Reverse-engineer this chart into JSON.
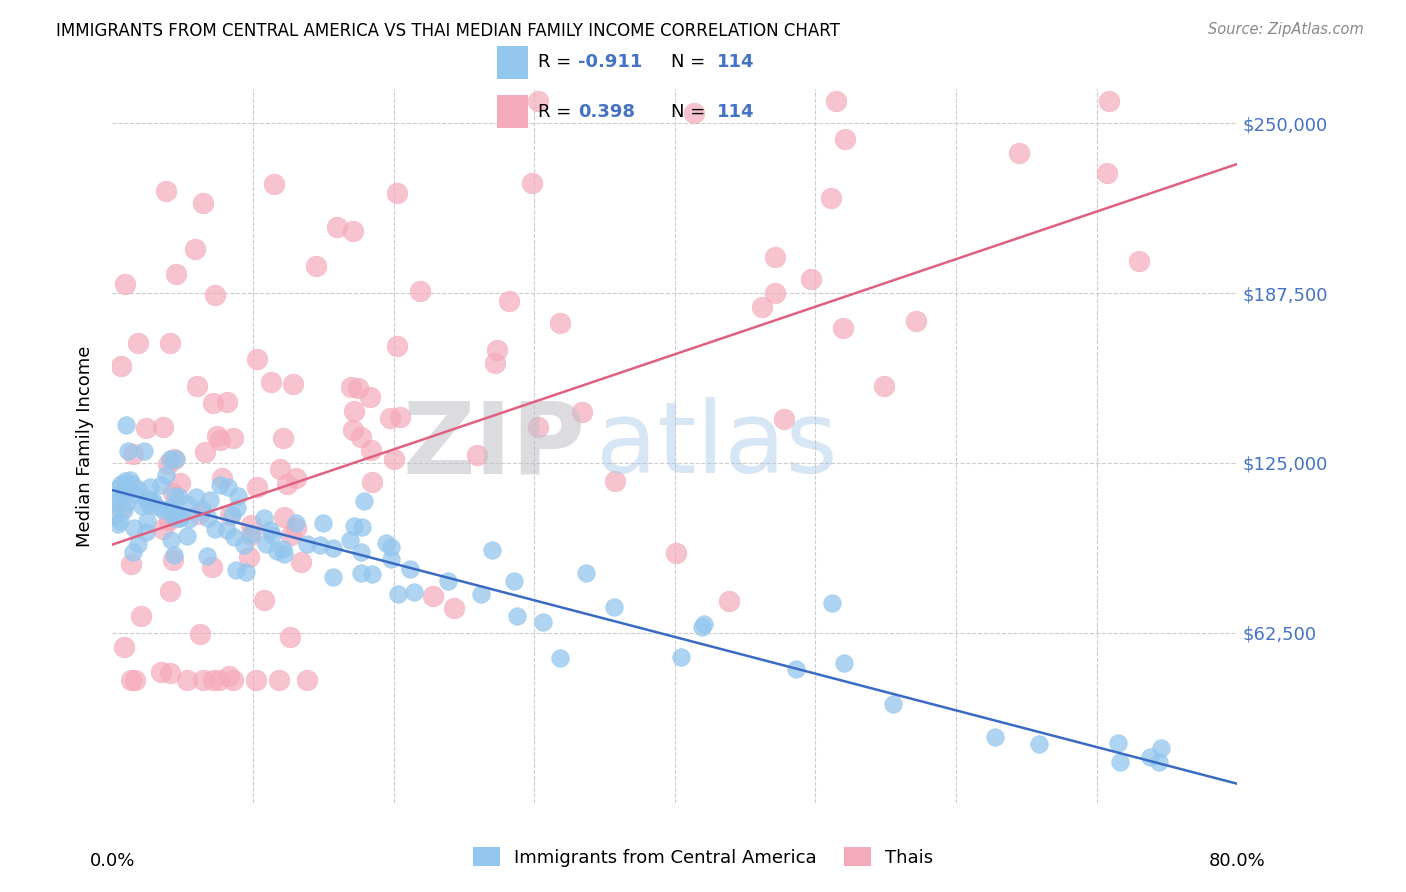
{
  "title": "IMMIGRANTS FROM CENTRAL AMERICA VS THAI MEDIAN FAMILY INCOME CORRELATION CHART",
  "source": "Source: ZipAtlas.com",
  "ylabel": "Median Family Income",
  "xlim": [
    0.0,
    0.8
  ],
  "ylim": [
    0,
    262500
  ],
  "yticks": [
    0,
    62500,
    125000,
    187500,
    250000
  ],
  "ytick_labels": [
    "",
    "$62,500",
    "$125,000",
    "$187,500",
    "$250,000"
  ],
  "xticks": [
    0.0,
    0.1,
    0.2,
    0.3,
    0.4,
    0.5,
    0.6,
    0.7,
    0.8
  ],
  "blue_R": -0.911,
  "blue_N": 114,
  "pink_R": 0.398,
  "pink_N": 114,
  "blue_color": "#93C6ED",
  "pink_color": "#F5AABB",
  "blue_line_color": "#3A6BC4",
  "pink_line_color": "#E06080",
  "legend_label_blue": "Immigrants from Central America",
  "legend_label_pink": "Thais",
  "watermark_zip": "ZIP",
  "watermark_atlas": "atlas",
  "title_fontsize": 12,
  "axis_color": "#4472C4",
  "background_color": "#FFFFFF",
  "grid_color": "#CCCCCC",
  "seed": 42,
  "blue_intercept": 115000,
  "blue_slope": -135000,
  "pink_intercept": 95000,
  "pink_slope": 175000
}
